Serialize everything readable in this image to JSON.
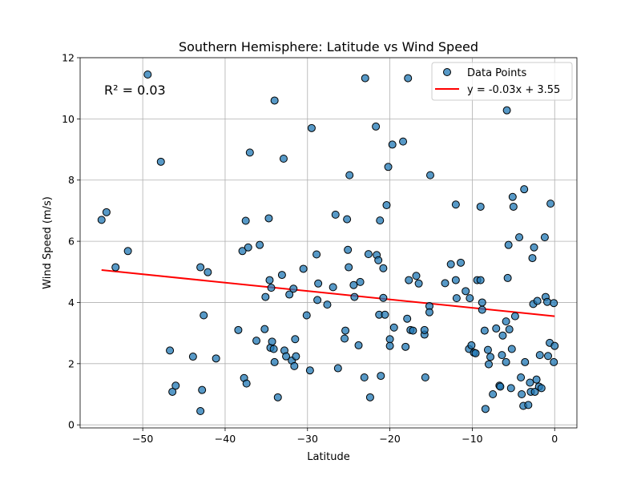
{
  "chart_data": {
    "type": "scatter",
    "title": "Southern Hemisphere: Latitude vs Wind Speed",
    "xlabel": "Latitude",
    "ylabel": "Wind Speed (m/s)",
    "xlim": [
      -57.6,
      2.7
    ],
    "ylim": [
      -0.1,
      12.0
    ],
    "xticks": [
      -50,
      -40,
      -30,
      -20,
      -10,
      0
    ],
    "xtick_labels": [
      "−50",
      "−40",
      "−30",
      "−20",
      "−10",
      "0"
    ],
    "yticks": [
      0,
      2,
      4,
      6,
      8,
      10,
      12
    ],
    "ytick_labels": [
      "0",
      "2",
      "4",
      "6",
      "8",
      "10",
      "12"
    ],
    "grid": true,
    "legend_position": "top-right",
    "annotation": {
      "text": "R² = 0.03",
      "color": "#ff0000",
      "position": "top-left"
    },
    "series": [
      {
        "name": "Data Points",
        "kind": "scatter",
        "color": "#1f77b4",
        "points": [
          [
            -55.0,
            6.7
          ],
          [
            -54.4,
            6.95
          ],
          [
            -53.3,
            5.15
          ],
          [
            -51.8,
            5.68
          ],
          [
            -49.4,
            11.45
          ],
          [
            -47.8,
            8.6
          ],
          [
            -46.7,
            2.43
          ],
          [
            -46.4,
            1.08
          ],
          [
            -46.0,
            1.28
          ],
          [
            -43.9,
            2.23
          ],
          [
            -43.0,
            5.15
          ],
          [
            -43.0,
            0.45
          ],
          [
            -42.8,
            1.14
          ],
          [
            -42.6,
            3.58
          ],
          [
            -42.1,
            4.99
          ],
          [
            -41.1,
            2.17
          ],
          [
            -38.4,
            3.1
          ],
          [
            -37.9,
            5.68
          ],
          [
            -37.7,
            1.53
          ],
          [
            -37.5,
            6.67
          ],
          [
            -37.4,
            1.35
          ],
          [
            -37.2,
            5.8
          ],
          [
            -37.0,
            8.9
          ],
          [
            -36.2,
            2.75
          ],
          [
            -35.8,
            5.88
          ],
          [
            -35.2,
            3.13
          ],
          [
            -35.1,
            4.18
          ],
          [
            -34.7,
            6.75
          ],
          [
            -34.6,
            4.73
          ],
          [
            -34.5,
            2.52
          ],
          [
            -34.4,
            4.48
          ],
          [
            -34.3,
            2.72
          ],
          [
            -34.1,
            2.48
          ],
          [
            -34.0,
            10.6
          ],
          [
            -34.0,
            2.05
          ],
          [
            -33.6,
            0.9
          ],
          [
            -33.1,
            4.9
          ],
          [
            -32.9,
            8.7
          ],
          [
            -32.8,
            2.43
          ],
          [
            -32.6,
            2.24
          ],
          [
            -32.2,
            4.26
          ],
          [
            -31.9,
            2.1
          ],
          [
            -31.7,
            4.45
          ],
          [
            -31.6,
            1.92
          ],
          [
            -31.5,
            2.8
          ],
          [
            -31.4,
            2.24
          ],
          [
            -30.5,
            5.1
          ],
          [
            -30.1,
            3.58
          ],
          [
            -29.7,
            1.78
          ],
          [
            -29.5,
            9.7
          ],
          [
            -28.9,
            5.57
          ],
          [
            -28.8,
            4.08
          ],
          [
            -28.7,
            4.62
          ],
          [
            -27.6,
            3.93
          ],
          [
            -26.9,
            4.5
          ],
          [
            -26.6,
            6.87
          ],
          [
            -26.3,
            1.85
          ],
          [
            -25.5,
            2.82
          ],
          [
            -25.4,
            3.08
          ],
          [
            -25.2,
            6.72
          ],
          [
            -25.1,
            5.72
          ],
          [
            -25.0,
            5.15
          ],
          [
            -24.9,
            8.16
          ],
          [
            -24.4,
            4.57
          ],
          [
            -24.3,
            4.18
          ],
          [
            -23.8,
            2.6
          ],
          [
            -23.6,
            4.67
          ],
          [
            -23.1,
            1.55
          ],
          [
            -23.0,
            11.33
          ],
          [
            -22.6,
            5.58
          ],
          [
            -22.4,
            0.9
          ],
          [
            -21.7,
            9.75
          ],
          [
            -21.6,
            5.55
          ],
          [
            -21.4,
            5.38
          ],
          [
            -21.3,
            3.6
          ],
          [
            -21.2,
            6.68
          ],
          [
            -21.1,
            1.6
          ],
          [
            -20.8,
            4.15
          ],
          [
            -20.8,
            5.12
          ],
          [
            -20.6,
            3.6
          ],
          [
            -20.4,
            7.18
          ],
          [
            -20.2,
            8.43
          ],
          [
            -20.0,
            2.8
          ],
          [
            -20.0,
            2.58
          ],
          [
            -19.7,
            9.16
          ],
          [
            -19.5,
            3.18
          ],
          [
            -18.4,
            9.26
          ],
          [
            -18.1,
            2.55
          ],
          [
            -17.9,
            3.47
          ],
          [
            -17.8,
            11.33
          ],
          [
            -17.7,
            4.73
          ],
          [
            -17.5,
            3.1
          ],
          [
            -17.2,
            3.08
          ],
          [
            -16.8,
            4.87
          ],
          [
            -16.5,
            4.62
          ],
          [
            -15.8,
            2.95
          ],
          [
            -15.8,
            3.1
          ],
          [
            -15.7,
            1.55
          ],
          [
            -15.2,
            3.88
          ],
          [
            -15.2,
            3.68
          ],
          [
            -15.1,
            8.16
          ],
          [
            -13.3,
            4.63
          ],
          [
            -12.6,
            5.25
          ],
          [
            -12.0,
            7.2
          ],
          [
            -12.0,
            4.73
          ],
          [
            -11.9,
            4.14
          ],
          [
            -11.4,
            5.3
          ],
          [
            -10.8,
            4.37
          ],
          [
            -10.4,
            2.48
          ],
          [
            -10.3,
            4.14
          ],
          [
            -10.1,
            2.6
          ],
          [
            -9.8,
            2.36
          ],
          [
            -9.6,
            2.34
          ],
          [
            -9.4,
            4.73
          ],
          [
            -9.0,
            7.13
          ],
          [
            -9.0,
            4.73
          ],
          [
            -8.8,
            3.76
          ],
          [
            -8.8,
            4.0
          ],
          [
            -8.5,
            3.08
          ],
          [
            -8.4,
            0.52
          ],
          [
            -8.1,
            2.45
          ],
          [
            -8.0,
            1.98
          ],
          [
            -7.8,
            2.22
          ],
          [
            -7.5,
            1.0
          ],
          [
            -7.1,
            3.15
          ],
          [
            -6.7,
            1.28
          ],
          [
            -6.6,
            1.25
          ],
          [
            -6.4,
            2.28
          ],
          [
            -6.3,
            2.92
          ],
          [
            -5.9,
            2.05
          ],
          [
            -5.9,
            3.38
          ],
          [
            -5.8,
            10.28
          ],
          [
            -5.7,
            4.8
          ],
          [
            -5.6,
            5.88
          ],
          [
            -5.5,
            3.12
          ],
          [
            -5.3,
            1.2
          ],
          [
            -5.2,
            2.48
          ],
          [
            -5.1,
            7.45
          ],
          [
            -5.0,
            7.13
          ],
          [
            -4.8,
            3.55
          ],
          [
            -4.3,
            6.13
          ],
          [
            -4.1,
            1.55
          ],
          [
            -4.0,
            1.0
          ],
          [
            -3.8,
            0.62
          ],
          [
            -3.7,
            7.7
          ],
          [
            -3.6,
            2.05
          ],
          [
            -3.2,
            0.65
          ],
          [
            -3.0,
            1.38
          ],
          [
            -2.9,
            1.08
          ],
          [
            -2.7,
            5.45
          ],
          [
            -2.6,
            3.95
          ],
          [
            -2.5,
            5.8
          ],
          [
            -2.4,
            1.08
          ],
          [
            -2.2,
            1.48
          ],
          [
            -2.1,
            4.05
          ],
          [
            -1.9,
            1.25
          ],
          [
            -1.8,
            2.28
          ],
          [
            -1.6,
            1.2
          ],
          [
            -1.2,
            6.13
          ],
          [
            -1.1,
            4.18
          ],
          [
            -0.9,
            4.02
          ],
          [
            -0.8,
            2.25
          ],
          [
            -0.6,
            2.68
          ],
          [
            -0.5,
            7.23
          ],
          [
            -0.1,
            3.98
          ],
          [
            -0.1,
            2.05
          ],
          [
            0.0,
            2.58
          ]
        ]
      },
      {
        "name": "y = -0.03x + 3.55",
        "kind": "line",
        "color": "#ff0000",
        "x": [
          -55.0,
          0.0
        ],
        "y": [
          5.06,
          3.55
        ]
      }
    ]
  }
}
